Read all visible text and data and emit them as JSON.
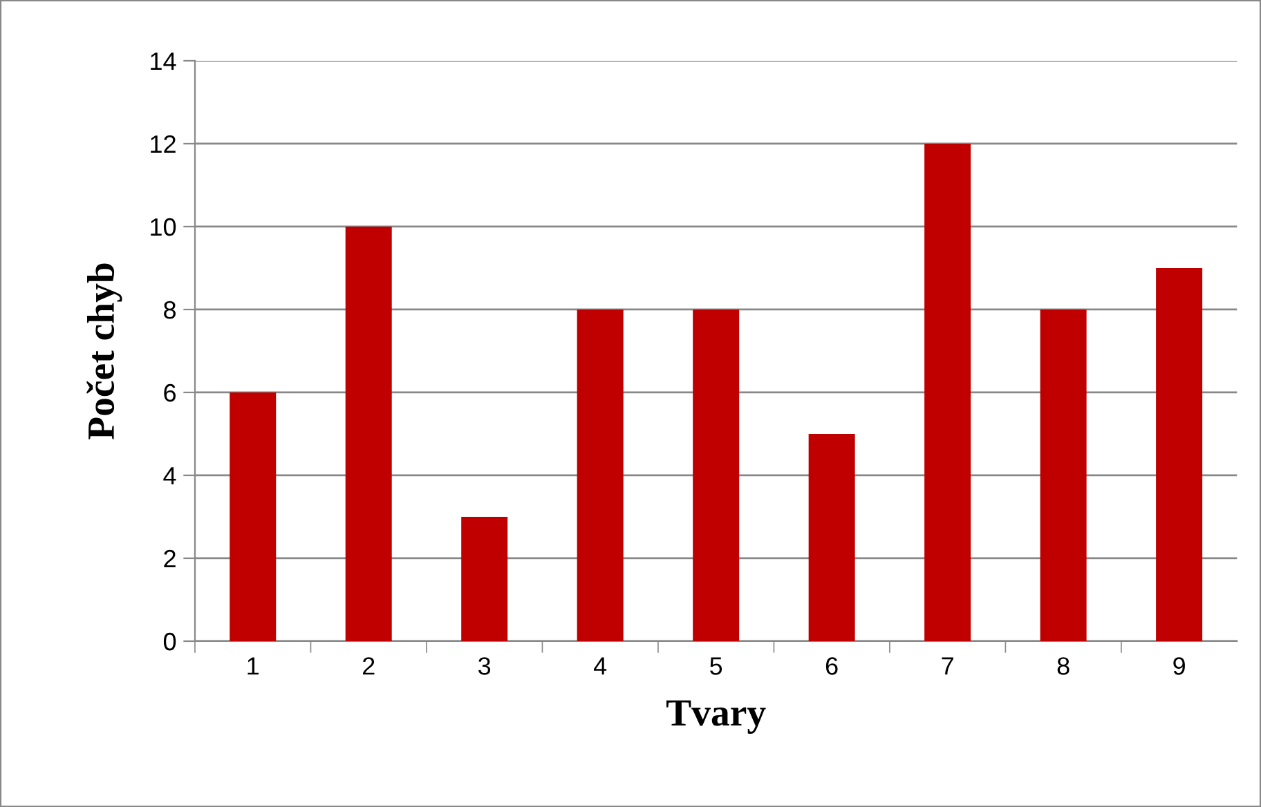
{
  "chart_data": {
    "type": "bar",
    "xlabel": "Tvary",
    "ylabel": "Počet chyb",
    "categories": [
      "1",
      "2",
      "3",
      "4",
      "5",
      "6",
      "7",
      "8",
      "9"
    ],
    "values": [
      6,
      10,
      3,
      8,
      8,
      5,
      12,
      8,
      9
    ],
    "color": "#c00000",
    "ylim": [
      0,
      14
    ],
    "yticks": [
      0,
      2,
      4,
      6,
      8,
      10,
      12,
      14
    ],
    "grid": "y"
  }
}
